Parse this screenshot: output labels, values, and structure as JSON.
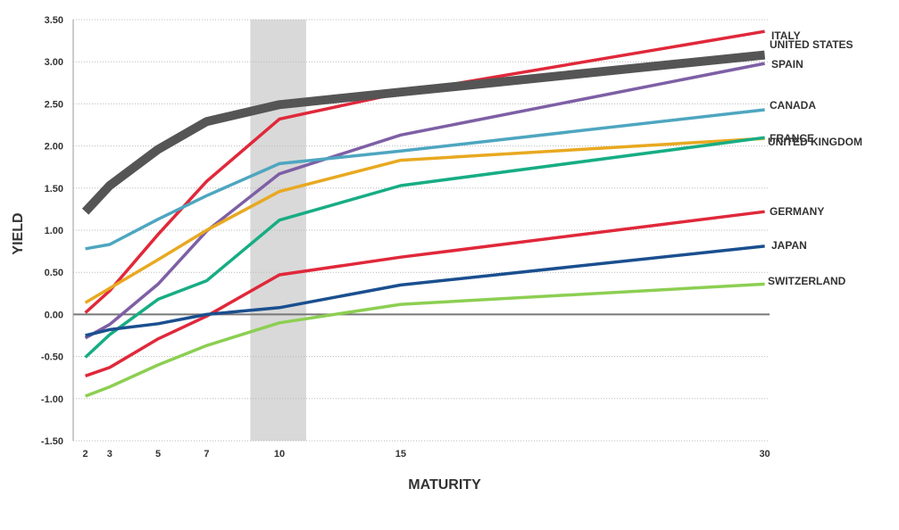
{
  "chart_data": {
    "type": "line",
    "xlabel": "MATURITY",
    "ylabel": "YIELD",
    "x": [
      2,
      3,
      5,
      7,
      10,
      15,
      30
    ],
    "xlim": [
      1.5,
      30.2
    ],
    "ylim": [
      -1.5,
      3.5
    ],
    "yticks": [
      "3.50",
      "3.00",
      "2.50",
      "2.00",
      "1.50",
      "1.00",
      "0.50",
      "0.00",
      "-0.50",
      "-1.00",
      "-1.50"
    ],
    "ytick_values": [
      3.5,
      3.0,
      2.5,
      2.0,
      1.5,
      1.0,
      0.5,
      0.0,
      -0.5,
      -1.0,
      -1.5
    ],
    "grid": true,
    "shaded_x_range": [
      8.8,
      11.1
    ],
    "series": [
      {
        "name": "ITALY",
        "color": "#e0283a",
        "values": [
          0.02,
          0.28,
          0.95,
          1.58,
          2.32,
          2.63,
          3.36
        ]
      },
      {
        "name": "UNITED STATES",
        "color": "#555555",
        "values": [
          1.22,
          1.53,
          1.96,
          2.29,
          2.49,
          2.64,
          3.08
        ]
      },
      {
        "name": "SPAIN",
        "color": "#7e5fa5",
        "values": [
          -0.28,
          -0.12,
          0.36,
          0.99,
          1.67,
          2.13,
          2.98
        ]
      },
      {
        "name": "CANADA",
        "color": "#4ea6c0",
        "values": [
          0.78,
          0.83,
          1.13,
          1.41,
          1.79,
          1.94,
          2.43
        ]
      },
      {
        "name": "FRANCE",
        "color": "#e8a920",
        "values": [
          0.14,
          0.31,
          0.65,
          1.0,
          1.46,
          1.83,
          2.09
        ]
      },
      {
        "name": "UNITED KINGDOM",
        "color": "#17ad84",
        "values": [
          -0.51,
          -0.24,
          0.18,
          0.4,
          1.12,
          1.53,
          2.1
        ]
      },
      {
        "name": "GERMANY",
        "color": "#e0283a",
        "values": [
          -0.73,
          -0.63,
          -0.29,
          -0.02,
          0.47,
          0.68,
          1.22
        ]
      },
      {
        "name": "JAPAN",
        "color": "#1a4f8f",
        "values": [
          -0.25,
          -0.18,
          -0.11,
          0.0,
          0.08,
          0.35,
          0.81
        ]
      },
      {
        "name": "SWITZERLAND",
        "color": "#8ccf52",
        "values": [
          -0.97,
          -0.86,
          -0.6,
          -0.37,
          -0.1,
          0.12,
          0.36
        ]
      }
    ]
  }
}
